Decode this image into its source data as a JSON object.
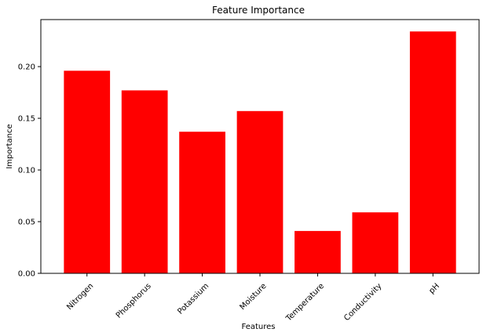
{
  "chart_data": {
    "type": "bar",
    "title": "Feature Importance",
    "xlabel": "Features",
    "ylabel": "Importance",
    "categories": [
      "Nitrogen",
      "Phosphorus",
      "Potassium",
      "Moisture",
      "Temperature",
      "Conductivity",
      "pH"
    ],
    "values": [
      0.196,
      0.177,
      0.137,
      0.157,
      0.041,
      0.059,
      0.234
    ],
    "ylim": [
      0,
      0.2455
    ],
    "yticks": [
      0.0,
      0.05,
      0.1,
      0.15,
      0.2
    ],
    "ytick_labels": [
      "0.00",
      "0.05",
      "0.10",
      "0.15",
      "0.20"
    ],
    "grid": false,
    "bar_color": "#ff0000"
  }
}
